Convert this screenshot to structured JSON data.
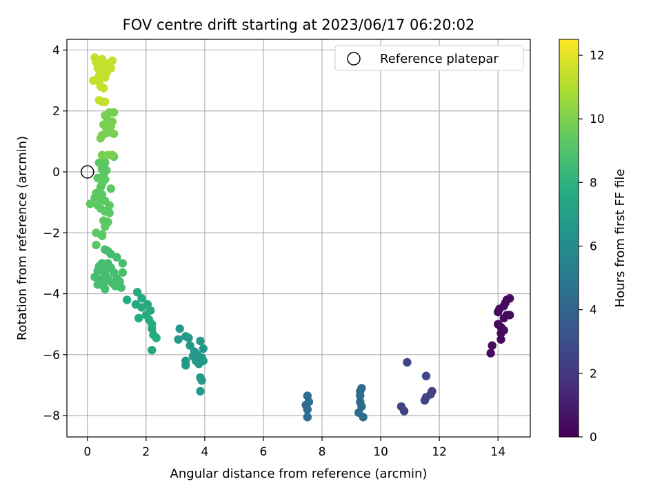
{
  "chart_data": {
    "type": "scatter",
    "title": "FOV centre drift starting at 2023/06/17 06:20:02",
    "xlabel": "Angular distance from reference (arcmin)",
    "ylabel": "Rotation from reference (arcmin)",
    "xlim": [
      -0.7,
      15.1
    ],
    "ylim": [
      -8.7,
      4.35
    ],
    "xticks": [
      0,
      2,
      4,
      6,
      8,
      10,
      12,
      14
    ],
    "yticks": [
      -8,
      -6,
      -4,
      -2,
      0,
      2,
      4
    ],
    "grid": true,
    "legend": {
      "placement": "top-right",
      "entries": [
        {
          "label": "Reference platepar",
          "marker": "open-circle"
        }
      ]
    },
    "reference_point": {
      "x": 0,
      "y": 0
    },
    "colorbar": {
      "label": "Hours from first FF file",
      "range": [
        0,
        12.5
      ],
      "ticks": [
        0,
        2,
        4,
        6,
        8,
        10,
        12
      ],
      "colormap": "viridis"
    },
    "series": [
      {
        "color_value": 0.4,
        "points": [
          [
            14.4,
            -4.15
          ],
          [
            14.3,
            -4.2
          ],
          [
            14.25,
            -4.3
          ],
          [
            14.2,
            -4.4
          ],
          [
            14.05,
            -4.5
          ],
          [
            14.0,
            -4.6
          ],
          [
            14.3,
            -4.7
          ],
          [
            14.4,
            -4.7
          ],
          [
            14.2,
            -4.8
          ],
          [
            14.0,
            -5.0
          ],
          [
            14.1,
            -5.1
          ],
          [
            14.2,
            -5.2
          ],
          [
            14.1,
            -5.3
          ],
          [
            14.1,
            -5.5
          ],
          [
            13.8,
            -5.7
          ],
          [
            13.75,
            -5.95
          ]
        ]
      },
      {
        "color_value": 2.5,
        "points": [
          [
            10.9,
            -6.25
          ],
          [
            11.55,
            -6.7
          ],
          [
            11.75,
            -7.2
          ],
          [
            11.7,
            -7.3
          ],
          [
            11.55,
            -7.4
          ],
          [
            11.5,
            -7.5
          ],
          [
            10.7,
            -7.7
          ],
          [
            10.8,
            -7.85
          ]
        ]
      },
      {
        "color_value": 4.4,
        "points": [
          [
            9.35,
            -7.1
          ],
          [
            9.3,
            -7.2
          ],
          [
            9.3,
            -7.35
          ],
          [
            9.3,
            -7.55
          ],
          [
            9.35,
            -7.7
          ],
          [
            9.25,
            -7.9
          ],
          [
            9.4,
            -8.05
          ],
          [
            7.5,
            -7.35
          ],
          [
            7.55,
            -7.55
          ],
          [
            7.45,
            -7.65
          ],
          [
            7.5,
            -7.8
          ],
          [
            7.5,
            -8.05
          ]
        ]
      },
      {
        "color_value": 6.7,
        "points": [
          [
            3.15,
            -5.15
          ],
          [
            3.35,
            -5.4
          ],
          [
            3.45,
            -5.45
          ],
          [
            3.1,
            -5.5
          ],
          [
            3.5,
            -5.7
          ],
          [
            3.85,
            -5.55
          ],
          [
            3.95,
            -5.8
          ],
          [
            3.65,
            -5.9
          ],
          [
            3.75,
            -6.0
          ],
          [
            3.6,
            -6.05
          ],
          [
            3.9,
            -6.1
          ],
          [
            3.7,
            -6.2
          ],
          [
            3.95,
            -6.2
          ],
          [
            3.35,
            -6.2
          ],
          [
            3.35,
            -6.35
          ],
          [
            3.8,
            -6.3
          ],
          [
            3.85,
            -6.75
          ],
          [
            3.9,
            -6.85
          ],
          [
            3.85,
            -7.2
          ]
        ]
      },
      {
        "color_value": 7.6,
        "points": [
          [
            1.35,
            -4.2
          ],
          [
            1.7,
            -3.95
          ],
          [
            1.85,
            -4.15
          ],
          [
            1.65,
            -4.35
          ],
          [
            2.05,
            -4.35
          ],
          [
            1.85,
            -4.45
          ],
          [
            2.15,
            -4.55
          ],
          [
            2.0,
            -4.7
          ],
          [
            2.1,
            -4.85
          ],
          [
            1.75,
            -4.8
          ],
          [
            2.2,
            -5.0
          ],
          [
            2.2,
            -5.15
          ],
          [
            2.25,
            -5.35
          ],
          [
            2.35,
            -5.45
          ],
          [
            2.2,
            -5.85
          ]
        ]
      },
      {
        "color_value": 8.7,
        "points": [
          [
            0.6,
            -2.55
          ],
          [
            0.7,
            -2.6
          ],
          [
            0.8,
            -2.7
          ],
          [
            1.0,
            -2.8
          ],
          [
            0.5,
            -3.0
          ],
          [
            0.7,
            -3.0
          ],
          [
            1.2,
            -3.0
          ],
          [
            0.4,
            -3.1
          ],
          [
            0.55,
            -3.15
          ],
          [
            0.8,
            -3.15
          ],
          [
            0.35,
            -3.25
          ],
          [
            0.6,
            -3.3
          ],
          [
            0.9,
            -3.3
          ],
          [
            1.2,
            -3.3
          ],
          [
            0.25,
            -3.45
          ],
          [
            0.5,
            -3.5
          ],
          [
            0.7,
            -3.5
          ],
          [
            1.0,
            -3.5
          ],
          [
            0.4,
            -3.6
          ],
          [
            0.6,
            -3.6
          ],
          [
            0.85,
            -3.65
          ],
          [
            1.1,
            -3.6
          ],
          [
            0.35,
            -3.7
          ],
          [
            0.55,
            -3.75
          ],
          [
            0.95,
            -3.75
          ],
          [
            1.15,
            -3.8
          ],
          [
            0.6,
            -3.85
          ]
        ]
      },
      {
        "color_value": 9.3,
        "points": [
          [
            0.4,
            0.3
          ],
          [
            0.6,
            0.3
          ],
          [
            0.9,
            0.5
          ],
          [
            0.5,
            0.1
          ],
          [
            0.65,
            0.05
          ],
          [
            0.55,
            -0.1
          ],
          [
            0.35,
            -0.2
          ],
          [
            0.6,
            -0.25
          ],
          [
            0.5,
            -0.4
          ],
          [
            0.45,
            -0.5
          ],
          [
            0.8,
            -0.55
          ],
          [
            0.3,
            -0.7
          ],
          [
            0.5,
            -0.75
          ],
          [
            0.25,
            -0.85
          ],
          [
            0.4,
            -0.9
          ],
          [
            0.6,
            -0.95
          ],
          [
            0.1,
            -1.05
          ],
          [
            0.35,
            -1.1
          ],
          [
            0.75,
            -1.1
          ],
          [
            0.45,
            -1.2
          ],
          [
            0.7,
            -1.25
          ],
          [
            0.6,
            -1.3
          ],
          [
            0.75,
            -1.35
          ],
          [
            0.55,
            -1.6
          ],
          [
            0.7,
            -1.65
          ],
          [
            0.6,
            -1.8
          ],
          [
            0.3,
            -2.0
          ],
          [
            0.5,
            -2.05
          ],
          [
            0.5,
            -2.1
          ],
          [
            0.3,
            -2.4
          ]
        ]
      },
      {
        "color_value": 9.9,
        "points": [
          [
            0.5,
            0.55
          ],
          [
            0.7,
            0.55
          ],
          [
            0.85,
            0.55
          ],
          [
            0.45,
            1.1
          ],
          [
            0.5,
            1.2
          ],
          [
            0.6,
            1.25
          ],
          [
            0.75,
            1.3
          ],
          [
            0.9,
            1.25
          ],
          [
            0.65,
            1.45
          ],
          [
            0.8,
            1.5
          ],
          [
            0.55,
            1.55
          ],
          [
            0.85,
            1.65
          ],
          [
            0.7,
            1.7
          ],
          [
            0.6,
            1.85
          ],
          [
            0.75,
            1.95
          ],
          [
            0.9,
            1.95
          ]
        ]
      },
      {
        "color_value": 11.4,
        "points": [
          [
            0.4,
            2.35
          ],
          [
            0.5,
            2.3
          ],
          [
            0.6,
            2.3
          ],
          [
            0.45,
            2.8
          ],
          [
            0.55,
            2.75
          ],
          [
            0.4,
            2.95
          ],
          [
            0.2,
            3.0
          ],
          [
            0.35,
            3.05
          ],
          [
            0.6,
            3.1
          ],
          [
            0.4,
            3.15
          ],
          [
            0.5,
            3.2
          ],
          [
            0.65,
            3.25
          ],
          [
            0.45,
            3.3
          ],
          [
            0.6,
            3.35
          ],
          [
            0.35,
            3.4
          ],
          [
            0.8,
            3.4
          ],
          [
            0.55,
            3.45
          ],
          [
            0.45,
            3.55
          ],
          [
            0.65,
            3.55
          ],
          [
            0.3,
            3.6
          ],
          [
            0.85,
            3.65
          ],
          [
            0.5,
            3.7
          ],
          [
            0.25,
            3.75
          ]
        ]
      }
    ]
  }
}
